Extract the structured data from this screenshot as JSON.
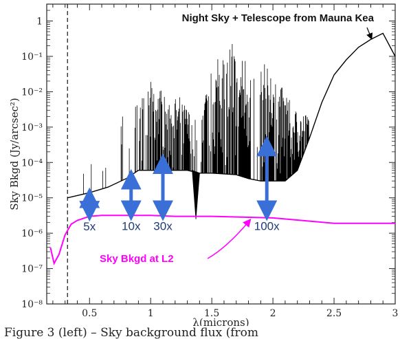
{
  "chart_data": {
    "type": "line",
    "xlabel": "λ(microns)",
    "ylabel": "Sky Bkgd (Jy/arcsec²)",
    "xlim": [
      0.15,
      3.0
    ],
    "ylim": [
      1e-08,
      3
    ],
    "yscale": "log",
    "x_ticks": [
      "0.5",
      "1",
      "1.5",
      "2",
      "2.5",
      "3"
    ],
    "y_ticks": [
      "10⁻⁸",
      "10⁻⁷",
      "10⁻⁶",
      "10⁻⁵",
      "10⁻⁴",
      "10⁻³",
      "10⁻²",
      "10⁻¹",
      "1"
    ],
    "vline_x": 0.32,
    "series": [
      {
        "name": "Night Sky + Telescope from Mauna Kea",
        "color": "#000000",
        "continuum": {
          "x": [
            0.32,
            0.5,
            0.65,
            0.8,
            0.9,
            1.0,
            1.2,
            1.3,
            1.4,
            1.5,
            1.7,
            1.8,
            1.9,
            2.0,
            2.1,
            2.2,
            2.3,
            2.4,
            2.5,
            2.6,
            2.7,
            2.8,
            2.9,
            3.0
          ],
          "y": [
            1e-05,
            1.4e-05,
            2e-05,
            3.5e-05,
            6e-05,
            6e-05,
            6e-05,
            6e-05,
            5e-05,
            5e-05,
            4.5e-05,
            3.5e-05,
            3e-05,
            3e-05,
            3e-05,
            6e-05,
            0.0005,
            0.005,
            0.03,
            0.08,
            0.18,
            0.3,
            0.45,
            0.1
          ]
        },
        "emission_peaks": {
          "x": [
            0.45,
            0.56,
            0.63,
            0.77,
            0.84,
            0.88,
            0.95,
            1.0,
            1.05,
            1.1,
            1.15,
            1.2,
            1.28,
            1.35,
            1.45,
            1.5,
            1.55,
            1.6,
            1.65,
            1.7,
            1.75,
            1.8,
            1.85,
            1.9,
            1.95,
            2.0,
            2.05,
            2.1,
            2.15,
            2.2,
            2.3
          ],
          "y": [
            5e-05,
            0.0003,
            0.0002,
            0.002,
            0.003,
            0.005,
            0.01,
            0.02,
            0.02,
            0.01,
            0.005,
            0.01,
            0.005,
            0.002,
            0.01,
            0.05,
            0.1,
            0.2,
            0.3,
            0.2,
            0.1,
            0.2,
            0.2,
            0.1,
            0.05,
            0.05,
            0.02,
            0.01,
            0.005,
            0.003,
            0.002
          ]
        }
      },
      {
        "name": "Sky Bkgd at L2",
        "color": "#ff00ff",
        "x": [
          0.18,
          0.21,
          0.25,
          0.3,
          0.35,
          0.4,
          0.5,
          0.6,
          0.8,
          1.0,
          1.2,
          1.5,
          2.0,
          2.5,
          3.0
        ],
        "y": [
          4e-07,
          1.4e-07,
          2.5e-07,
          9e-07,
          1.8e-06,
          2.3e-06,
          3e-06,
          3.2e-06,
          3.2e-06,
          3.2e-06,
          3e-06,
          3e-06,
          2.7e-06,
          1.9e-06,
          1.9e-06
        ]
      }
    ],
    "arrows": [
      {
        "label": "5x",
        "x": 0.5,
        "y_low": 3.5e-06,
        "y_high": 1.2e-05
      },
      {
        "label": "10x",
        "x": 0.84,
        "y_low": 3.6e-06,
        "y_high": 4e-05
      },
      {
        "label": "30x",
        "x": 1.1,
        "y_low": 3.6e-06,
        "y_high": 0.00011
      },
      {
        "label": "100x",
        "x": 1.95,
        "y_low": 3.6e-06,
        "y_high": 0.00035
      }
    ],
    "annotations": {
      "title_text": "Night Sky + Telescope from Mauna Kea",
      "l2_text": "Sky Bkgd at L2"
    },
    "colors": {
      "arrow": "#3a6fd8",
      "l2_curve": "#ff00ff",
      "sky_curve": "#000000"
    }
  },
  "caption": "Figure 3 (left) – Sky background flux (from"
}
